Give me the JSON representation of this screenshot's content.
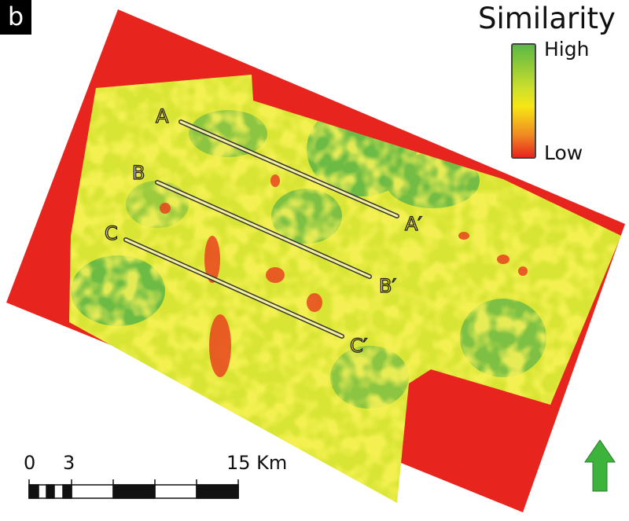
{
  "panel_label": "b",
  "legend": {
    "title": "Similarity",
    "high_label": "High",
    "low_label": "Low",
    "colors": {
      "high": "#5cb845",
      "mid": "#f7e614",
      "low": "#e8241e"
    }
  },
  "sections": [
    {
      "start": "A",
      "end": "A′"
    },
    {
      "start": "B",
      "end": "B′"
    },
    {
      "start": "C",
      "end": "C′"
    }
  ],
  "scale_bar": {
    "labels": [
      "0",
      "3",
      "15 Km"
    ]
  },
  "north_arrow": {
    "icon": "north-arrow-icon",
    "color": "#3cb43c"
  }
}
